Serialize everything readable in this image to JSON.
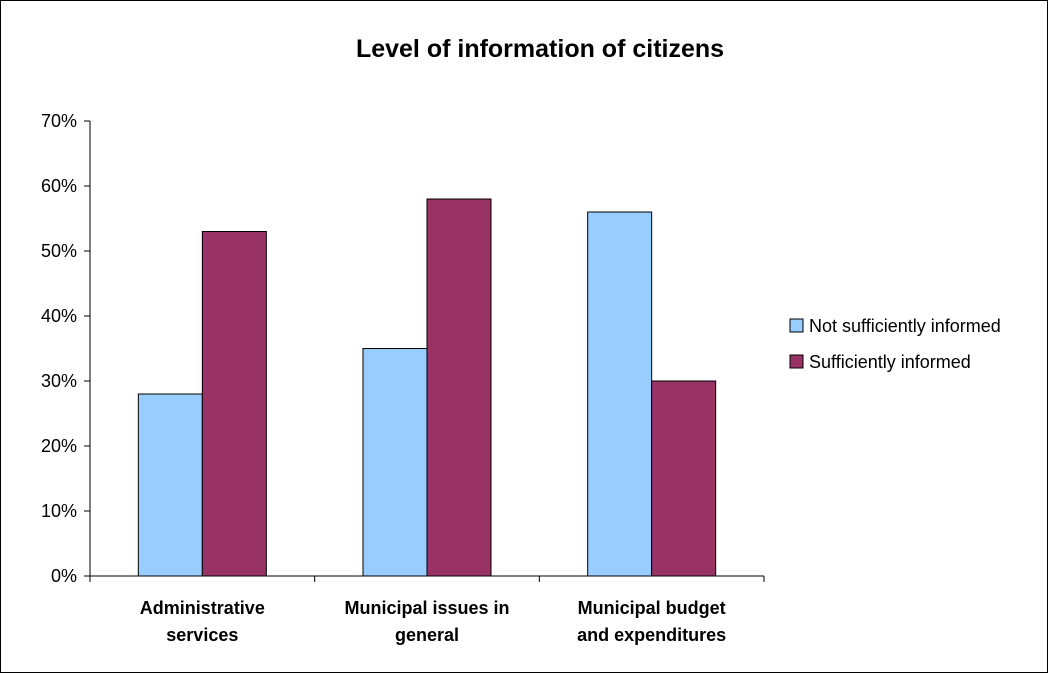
{
  "chart_data": {
    "type": "bar",
    "title": "Level of information of citizens",
    "xlabel": "",
    "ylabel": "",
    "ylim": [
      0,
      0.7
    ],
    "yticks": [
      "0%",
      "10%",
      "20%",
      "30%",
      "40%",
      "50%",
      "60%",
      "70%"
    ],
    "grid": false,
    "legend_position": "right",
    "categories": [
      [
        "Administrative",
        "services"
      ],
      [
        "Municipal issues in",
        "general"
      ],
      [
        "Municipal budget",
        "and expenditures"
      ]
    ],
    "series": [
      {
        "name": "Not sufficiently informed",
        "color": "#99ccff",
        "values": [
          0.28,
          0.35,
          0.56
        ]
      },
      {
        "name": "Sufficiently informed",
        "color": "#993366",
        "values": [
          0.53,
          0.58,
          0.3
        ]
      }
    ]
  }
}
